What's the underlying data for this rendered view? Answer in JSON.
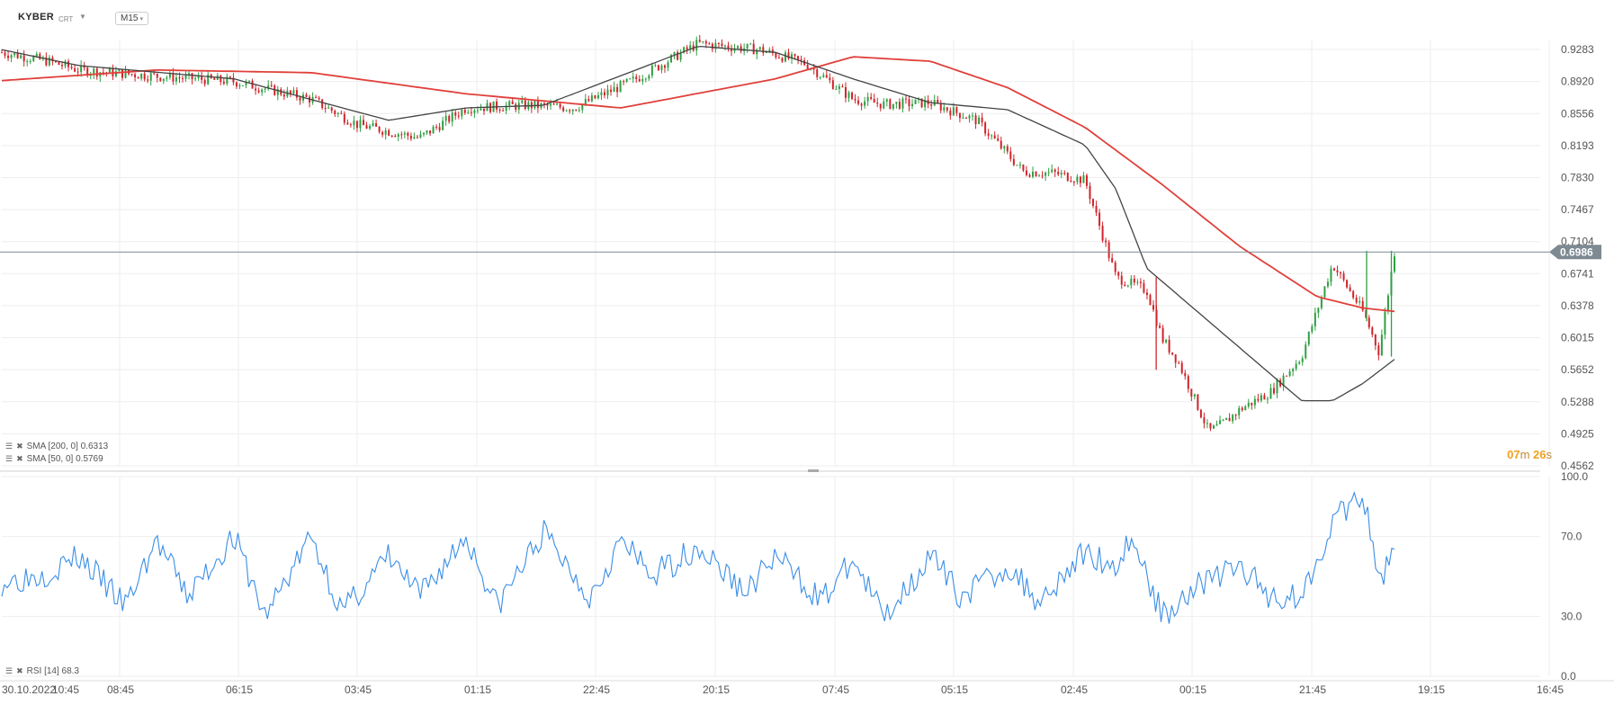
{
  "header": {
    "symbol": "KYBER",
    "sub": "CRT",
    "timeframe": "M15"
  },
  "indicators": {
    "sma200_label": "SMA [200, 0] 0.6313",
    "sma50_label": "SMA [50, 0] 0.5769",
    "rsi_label": "RSI [14] 68.3"
  },
  "countdown": {
    "min": "07",
    "min_unit": "m",
    "sec": "26",
    "sec_unit": "s"
  },
  "colors": {
    "up": "#2ea043",
    "down": "#d0242b",
    "sma200": "#e0403a",
    "sma50": "#444444",
    "rsi": "#3a8ee6",
    "grid": "#eeeeee",
    "price_tag": "#7d8a92"
  },
  "chart_data": [
    {
      "type": "candlestick",
      "title": "KYBER",
      "current_price": 0.6986,
      "ylim": [
        0.4562,
        0.9283
      ],
      "y_ticks": [
        "0.9283",
        "0.8920",
        "0.8556",
        "0.8193",
        "0.7830",
        "0.7467",
        "0.7104",
        "0.6741",
        "0.6378",
        "0.6015",
        "0.5652",
        "0.5288",
        "0.4925",
        "0.4562"
      ],
      "x_ticks": [
        "30.10.2022",
        "10:45",
        "08:45",
        "06:15",
        "03:45",
        "01:15",
        "22:45",
        "20:15",
        "07:45",
        "05:15",
        "02:45",
        "00:15",
        "21:45",
        "19:15",
        "16:45"
      ],
      "x_data": [
        0,
        3,
        5,
        10,
        15,
        20,
        23,
        27,
        30,
        34,
        37,
        41,
        45,
        49,
        52,
        55,
        57,
        60,
        63,
        66,
        68,
        70,
        72,
        74,
        75,
        76,
        77,
        78,
        79,
        80,
        82,
        84,
        86,
        88,
        89,
        90
      ],
      "close_data": [
        0.925,
        0.915,
        0.905,
        0.898,
        0.892,
        0.872,
        0.843,
        0.828,
        0.862,
        0.865,
        0.862,
        0.895,
        0.935,
        0.928,
        0.912,
        0.872,
        0.866,
        0.868,
        0.848,
        0.79,
        0.788,
        0.78,
        0.67,
        0.655,
        0.6,
        0.575,
        0.535,
        0.495,
        0.505,
        0.52,
        0.54,
        0.58,
        0.685,
        0.63,
        0.585,
        0.6986
      ],
      "series": [
        {
          "name": "SMA [200, 0]",
          "x": [
            0,
            10,
            20,
            30,
            40,
            50,
            55,
            60,
            65,
            70,
            75,
            80,
            85,
            88,
            90
          ],
          "values": [
            0.893,
            0.905,
            0.902,
            0.878,
            0.862,
            0.895,
            0.92,
            0.915,
            0.885,
            0.84,
            0.775,
            0.705,
            0.648,
            0.635,
            0.6313
          ]
        },
        {
          "name": "SMA [50, 0]",
          "x": [
            0,
            5,
            15,
            25,
            30,
            35,
            45,
            50,
            55,
            60,
            65,
            70,
            72,
            74,
            76,
            78,
            80,
            82,
            84,
            86,
            88,
            90
          ],
          "values": [
            0.928,
            0.91,
            0.895,
            0.848,
            0.862,
            0.865,
            0.932,
            0.925,
            0.895,
            0.868,
            0.86,
            0.82,
            0.77,
            0.68,
            0.65,
            0.62,
            0.59,
            0.56,
            0.53,
            0.53,
            0.55,
            0.5769
          ]
        }
      ]
    },
    {
      "type": "line",
      "title": "RSI [14]",
      "ylim": [
        0,
        100
      ],
      "y_ticks": [
        "100.0",
        "70.0",
        "30.0",
        "0.0"
      ],
      "series": [
        {
          "name": "RSI [14]",
          "x": [
            0,
            3,
            5,
            8,
            10,
            12,
            15,
            17,
            20,
            22,
            25,
            27,
            30,
            32,
            35,
            38,
            40,
            42,
            45,
            48,
            50,
            53,
            55,
            57,
            60,
            62,
            65,
            67,
            70,
            72,
            73,
            75,
            77,
            80,
            82,
            84,
            86,
            88,
            89,
            90
          ],
          "values": [
            47,
            52,
            60,
            35,
            68,
            40,
            70,
            30,
            70,
            32,
            60,
            40,
            70,
            35,
            72,
            40,
            68,
            50,
            65,
            42,
            60,
            38,
            58,
            30,
            60,
            40,
            55,
            38,
            62,
            55,
            70,
            30,
            45,
            55,
            40,
            40,
            78,
            90,
            45,
            68.3
          ]
        }
      ]
    }
  ]
}
